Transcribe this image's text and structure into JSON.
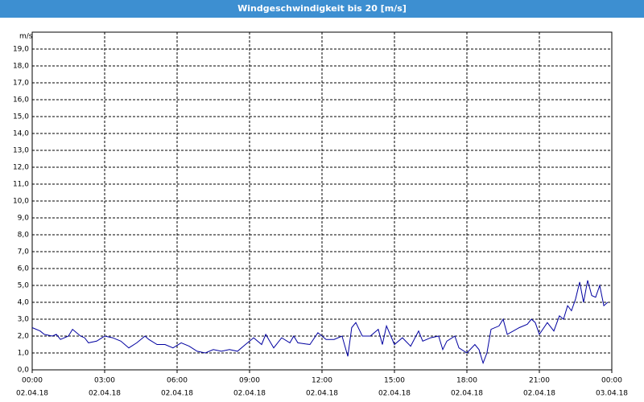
{
  "chart_data": {
    "type": "line",
    "title": "Windgeschwindigkeit bis 20 [m/s]",
    "y_label": "m/s",
    "xlim": [
      0,
      24
    ],
    "ylim": [
      0,
      20
    ],
    "xticks": [
      {
        "value": 0,
        "label": "00:00"
      },
      {
        "value": 3,
        "label": "03:00"
      },
      {
        "value": 6,
        "label": "06:00"
      },
      {
        "value": 9,
        "label": "09:00"
      },
      {
        "value": 12,
        "label": "12:00"
      },
      {
        "value": 15,
        "label": "15:00"
      },
      {
        "value": 18,
        "label": "18:00"
      },
      {
        "value": 21,
        "label": "21:00"
      },
      {
        "value": 24,
        "label": "00:00"
      }
    ],
    "xtick_dates": [
      "02.04.18",
      "02.04.18",
      "02.04.18",
      "02.04.18",
      "02.04.18",
      "02.04.18",
      "02.04.18",
      "02.04.18",
      "03.04.18"
    ],
    "yticks": [
      {
        "value": 0,
        "label": "0,0"
      },
      {
        "value": 1,
        "label": "1,0"
      },
      {
        "value": 2,
        "label": "2,0"
      },
      {
        "value": 3,
        "label": "3,0"
      },
      {
        "value": 4,
        "label": "4,0"
      },
      {
        "value": 5,
        "label": "5,0"
      },
      {
        "value": 6,
        "label": "6,0"
      },
      {
        "value": 7,
        "label": "7,0"
      },
      {
        "value": 8,
        "label": "8,0"
      },
      {
        "value": 9,
        "label": "9,0"
      },
      {
        "value": 10,
        "label": "10,0"
      },
      {
        "value": 11,
        "label": "11,0"
      },
      {
        "value": 12,
        "label": "12,0"
      },
      {
        "value": 13,
        "label": "13,0"
      },
      {
        "value": 14,
        "label": "14,0"
      },
      {
        "value": 15,
        "label": "15,0"
      },
      {
        "value": 16,
        "label": "16,0"
      },
      {
        "value": 17,
        "label": "17,0"
      },
      {
        "value": 18,
        "label": "18,0"
      },
      {
        "value": 19,
        "label": "19,0"
      }
    ],
    "grid": true,
    "series": [
      {
        "color": "#0000a0",
        "x": [
          0,
          0.33,
          0.5,
          0.83,
          1,
          1.17,
          1.5,
          1.67,
          2,
          2.17,
          2.33,
          2.67,
          3,
          3.33,
          3.67,
          4,
          4.33,
          4.67,
          4.83,
          5.17,
          5.5,
          5.83,
          6.17,
          6.5,
          6.83,
          7.17,
          7.5,
          7.83,
          8.17,
          8.5,
          8.83,
          9.17,
          9.5,
          9.67,
          10,
          10.33,
          10.67,
          10.83,
          11,
          11.5,
          11.83,
          12.17,
          12.5,
          12.83,
          13.07,
          13.23,
          13.4,
          13.67,
          14,
          14.33,
          14.5,
          14.67,
          15,
          15.33,
          15.67,
          16,
          16.17,
          16.5,
          16.83,
          17,
          17.17,
          17.5,
          17.67,
          18,
          18.33,
          18.5,
          18.67,
          18.83,
          19,
          19.33,
          19.5,
          19.67,
          20.17,
          20.5,
          20.67,
          20.83,
          21,
          21.33,
          21.6,
          21.83,
          22,
          22.17,
          22.33,
          22.5,
          22.67,
          22.83,
          23,
          23.17,
          23.33,
          23.5,
          23.67,
          23.83
        ],
        "values": [
          2.5,
          2.3,
          2.1,
          2.0,
          2.1,
          1.8,
          2.0,
          2.4,
          2.0,
          1.9,
          1.6,
          1.7,
          2.0,
          1.9,
          1.7,
          1.3,
          1.6,
          2.0,
          1.8,
          1.5,
          1.5,
          1.3,
          1.6,
          1.4,
          1.1,
          1.0,
          1.2,
          1.1,
          1.2,
          1.1,
          1.5,
          1.9,
          1.5,
          2.1,
          1.3,
          1.9,
          1.6,
          2.0,
          1.6,
          1.5,
          2.2,
          1.8,
          1.8,
          2.0,
          0.8,
          2.5,
          2.8,
          2.0,
          2.0,
          2.4,
          1.5,
          2.6,
          1.5,
          1.9,
          1.4,
          2.3,
          1.7,
          1.9,
          2.0,
          1.2,
          1.7,
          2.0,
          1.3,
          1.0,
          1.5,
          1.2,
          0.4,
          1.0,
          2.4,
          2.6,
          3.0,
          2.1,
          2.5,
          2.7,
          3.0,
          2.8,
          2.1,
          2.8,
          2.3,
          3.2,
          3.0,
          3.8,
          3.5,
          4.2,
          5.2,
          4.0,
          5.3,
          4.4,
          4.3,
          5.0,
          3.8,
          4.0
        ]
      }
    ]
  }
}
